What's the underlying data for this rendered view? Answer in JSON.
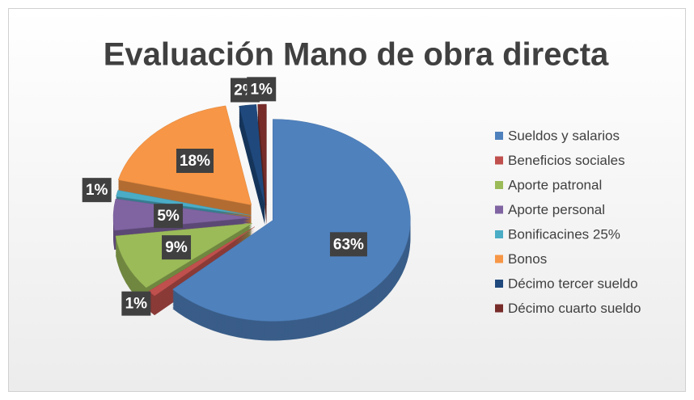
{
  "chart_data": {
    "type": "pie",
    "title": "Evaluación Mano de obra directa",
    "categories": [
      "Sueldos y salarios",
      "Beneficios sociales",
      "Aporte patronal",
      "Aporte personal",
      "Bonificacines 25%",
      "Bonos",
      "Décimo tercer sueldo",
      "Décimo cuarto sueldo"
    ],
    "values": [
      63,
      1,
      9,
      5,
      1,
      18,
      2,
      1
    ],
    "value_labels": [
      "63%",
      "1%",
      "9%",
      "5%",
      "1%",
      "18%",
      "2%",
      "1%"
    ],
    "colors": [
      "#4f81bd",
      "#c0504d",
      "#9bbb59",
      "#8064a2",
      "#4bacc6",
      "#f79646",
      "#1f497d",
      "#772c2a"
    ],
    "legend": "right"
  }
}
